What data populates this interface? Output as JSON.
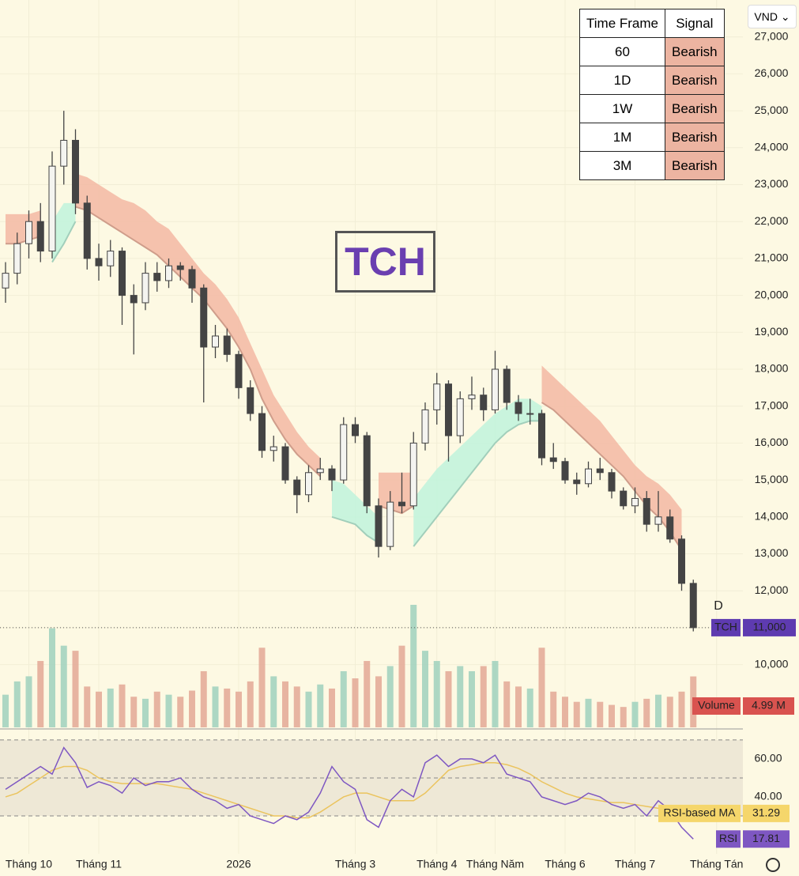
{
  "chart_data": {
    "type": "candlestick",
    "symbol": "TCH",
    "currency": "VND",
    "marker": "D",
    "ylim": [
      8300,
      28000
    ],
    "yticks": [
      {
        "value": 10000,
        "label": "10,000"
      },
      {
        "value": 11000,
        "label": "11,000"
      },
      {
        "value": 12000,
        "label": "12,000"
      },
      {
        "value": 13000,
        "label": "13,000"
      },
      {
        "value": 14000,
        "label": "14,000"
      },
      {
        "value": 15000,
        "label": "15,000"
      },
      {
        "value": 16000,
        "label": "16,000"
      },
      {
        "value": 17000,
        "label": "17,000"
      },
      {
        "value": 18000,
        "label": "18,000"
      },
      {
        "value": 19000,
        "label": "19,000"
      },
      {
        "value": 20000,
        "label": "20,000"
      },
      {
        "value": 21000,
        "label": "21,000"
      },
      {
        "value": 22000,
        "label": "22,000"
      },
      {
        "value": 23000,
        "label": "23,000"
      },
      {
        "value": 24000,
        "label": "24,000"
      },
      {
        "value": 25000,
        "label": "25,000"
      },
      {
        "value": 26000,
        "label": "26,000"
      },
      {
        "value": 27000,
        "label": "27,000"
      }
    ],
    "xticks": [
      {
        "value": 2,
        "label": "Tháng 10"
      },
      {
        "value": 8,
        "label": "Tháng 11"
      },
      {
        "value": 20,
        "label": "2026"
      },
      {
        "value": 30,
        "label": "Tháng 3"
      },
      {
        "value": 37,
        "label": "Tháng 4"
      },
      {
        "value": 42,
        "label": "Tháng Năm"
      },
      {
        "value": 48,
        "label": "Tháng 6"
      },
      {
        "value": 54,
        "label": "Tháng 7"
      },
      {
        "value": 61,
        "label": "Tháng Tán"
      }
    ],
    "ohlc": [
      [
        20200,
        20900,
        19800,
        20600
      ],
      [
        20600,
        21700,
        20300,
        21400
      ],
      [
        21400,
        22300,
        21000,
        22000
      ],
      [
        22000,
        22500,
        20900,
        21200
      ],
      [
        21200,
        23900,
        21000,
        23500
      ],
      [
        23500,
        25000,
        23000,
        24200
      ],
      [
        24200,
        24500,
        22200,
        22500
      ],
      [
        22500,
        22700,
        20700,
        21000
      ],
      [
        21000,
        21400,
        20400,
        20800
      ],
      [
        20800,
        21500,
        20500,
        21200
      ],
      [
        21200,
        21300,
        19200,
        20000
      ],
      [
        20000,
        20300,
        18400,
        19800
      ],
      [
        19800,
        20900,
        19600,
        20600
      ],
      [
        20600,
        20900,
        20100,
        20400
      ],
      [
        20400,
        21000,
        20200,
        20800
      ],
      [
        20800,
        20900,
        20400,
        20700
      ],
      [
        20700,
        20800,
        19800,
        20200
      ],
      [
        20200,
        20300,
        17100,
        18600
      ],
      [
        18600,
        19200,
        18300,
        18900
      ],
      [
        18900,
        19100,
        18200,
        18400
      ],
      [
        18400,
        18500,
        17200,
        17500
      ],
      [
        17500,
        17700,
        16600,
        16800
      ],
      [
        16800,
        17000,
        15600,
        15800
      ],
      [
        15800,
        16200,
        15500,
        15900
      ],
      [
        15900,
        16000,
        14900,
        15000
      ],
      [
        15000,
        15100,
        14100,
        14600
      ],
      [
        14600,
        15400,
        14400,
        15200
      ],
      [
        15200,
        15600,
        15000,
        15300
      ],
      [
        15300,
        15400,
        14700,
        15000
      ],
      [
        15000,
        16700,
        14900,
        16500
      ],
      [
        16500,
        16700,
        16000,
        16200
      ],
      [
        16200,
        16300,
        14100,
        14300
      ],
      [
        14300,
        14500,
        12900,
        13200
      ],
      [
        13200,
        14700,
        13100,
        14400
      ],
      [
        14400,
        15200,
        14100,
        14300
      ],
      [
        14300,
        16300,
        14200,
        16000
      ],
      [
        16000,
        17100,
        15800,
        16900
      ],
      [
        16900,
        17900,
        16500,
        17600
      ],
      [
        17600,
        17700,
        15500,
        16200
      ],
      [
        16200,
        17400,
        16000,
        17200
      ],
      [
        17200,
        17800,
        16900,
        17300
      ],
      [
        17300,
        17500,
        16600,
        16900
      ],
      [
        16900,
        18500,
        16800,
        18000
      ],
      [
        18000,
        18100,
        16900,
        17100
      ],
      [
        17100,
        17300,
        16600,
        16800
      ],
      [
        16800,
        17200,
        16500,
        16800
      ],
      [
        16800,
        16900,
        15400,
        15600
      ],
      [
        15600,
        16000,
        15300,
        15500
      ],
      [
        15500,
        15600,
        14900,
        15000
      ],
      [
        15000,
        15200,
        14600,
        14900
      ],
      [
        14900,
        15500,
        14800,
        15300
      ],
      [
        15300,
        15600,
        15000,
        15200
      ],
      [
        15200,
        15300,
        14500,
        14700
      ],
      [
        14700,
        14800,
        14200,
        14300
      ],
      [
        14300,
        14800,
        14100,
        14500
      ],
      [
        14500,
        14700,
        13600,
        13800
      ],
      [
        13800,
        14700,
        13600,
        14000
      ],
      [
        14000,
        14200,
        13300,
        13400
      ],
      [
        13400,
        13500,
        12000,
        12200
      ],
      [
        12200,
        12300,
        10900,
        11000
      ]
    ],
    "close_label": "11,000",
    "clouds": [
      {
        "color": "#f3b9a3",
        "start": 0,
        "upper": [
          22200,
          22200,
          22200,
          22300
        ],
        "lower": [
          21400,
          21400,
          21500,
          21600
        ]
      },
      {
        "color": "#bff3dc",
        "start": 4,
        "upper": [
          22000,
          22500,
          22500
        ],
        "lower": [
          20900,
          21400,
          22000
        ]
      },
      {
        "color": "#f3b9a3",
        "start": 6,
        "upper": [
          23300,
          23200,
          23000,
          22800,
          22600,
          22500,
          22300,
          22000,
          21800,
          21400,
          21000,
          20600,
          20300,
          19900,
          19400,
          18700,
          18000,
          17300,
          16800,
          16300,
          15900,
          15600
        ],
        "lower": [
          22400,
          22300,
          22100,
          21900,
          21700,
          21500,
          21300,
          21100,
          20800,
          20500,
          20200,
          19900,
          19500,
          19100,
          18600,
          18000,
          17200,
          16600,
          16100,
          15700,
          15400,
          15100
        ]
      },
      {
        "color": "#bff3dc",
        "start": 28,
        "upper": [
          15000,
          14900,
          14600,
          14300,
          14000
        ],
        "lower": [
          14000,
          13900,
          13800,
          13500,
          13300
        ]
      },
      {
        "color": "#f3b9a3",
        "start": 32,
        "upper": [
          15200,
          15200,
          15200,
          15200
        ],
        "lower": [
          14300,
          14200,
          14100,
          14300
        ]
      },
      {
        "color": "#bff3dc",
        "start": 35,
        "upper": [
          14500,
          14900,
          15300,
          15600,
          15900,
          16200,
          16500,
          16800,
          17000,
          17200,
          17200,
          17000
        ],
        "lower": [
          13200,
          13600,
          14000,
          14400,
          14800,
          15200,
          15600,
          16000,
          16300,
          16500,
          16600,
          16600
        ]
      },
      {
        "color": "#f3b9a3",
        "start": 46,
        "upper": [
          18100,
          17800,
          17500,
          17200,
          16900,
          16600,
          16200,
          15800,
          15400,
          15100,
          14900,
          14600,
          14200
        ],
        "lower": [
          17100,
          16900,
          16600,
          16300,
          16000,
          15700,
          15400,
          15100,
          14700,
          14300,
          14000,
          13600,
          13100
        ]
      }
    ],
    "volume_name": "Volume",
    "volume": [
      3.2,
      4.5,
      5.0,
      6.5,
      9.7,
      8.0,
      7.5,
      4.0,
      3.5,
      3.8,
      4.2,
      3.0,
      2.8,
      3.5,
      3.2,
      3.0,
      3.6,
      5.5,
      4.0,
      3.8,
      3.5,
      4.5,
      7.8,
      5.0,
      4.5,
      4.0,
      3.5,
      4.2,
      3.8,
      5.5,
      4.8,
      6.5,
      5.0,
      6.0,
      8.0,
      12.0,
      7.5,
      6.5,
      5.5,
      6.0,
      5.5,
      6.0,
      6.5,
      4.5,
      4.0,
      3.8,
      7.8,
      3.5,
      3.0,
      2.5,
      2.8,
      2.5,
      2.2,
      2.0,
      2.5,
      2.8,
      3.2,
      3.0,
      3.5,
      4.99
    ],
    "volume_label": "4.99 M",
    "rsi_name": "RSI",
    "rsi_ma_name": "RSI-based MA",
    "rsi_ylim": [
      10,
      73.3
    ],
    "rsi_yticks": [
      {
        "value": 60,
        "label": "60.00"
      },
      {
        "value": 40,
        "label": "40.00"
      }
    ],
    "rsi_levels": [
      70,
      50,
      30
    ],
    "rsi": [
      44,
      48,
      52,
      56,
      52,
      66,
      58,
      45,
      48,
      46,
      42,
      50,
      46,
      48,
      48,
      50,
      44,
      40,
      38,
      34,
      36,
      30,
      28,
      26,
      30,
      28,
      32,
      42,
      56,
      48,
      44,
      28,
      24,
      38,
      44,
      40,
      58,
      62,
      56,
      60,
      60,
      58,
      62,
      52,
      50,
      48,
      40,
      38,
      36,
      38,
      42,
      40,
      36,
      34,
      36,
      30,
      38,
      33,
      24,
      17.81
    ],
    "rsi_ma": [
      40,
      42,
      46,
      50,
      54,
      56,
      56,
      54,
      50,
      48,
      47,
      47,
      47,
      47,
      46,
      45,
      44,
      42,
      40,
      38,
      36,
      34,
      32,
      30,
      30,
      29,
      29,
      32,
      36,
      40,
      42,
      42,
      40,
      38,
      38,
      38,
      42,
      48,
      54,
      56,
      57,
      58,
      58,
      57,
      55,
      52,
      48,
      45,
      42,
      40,
      39,
      38,
      37,
      37,
      36,
      35,
      34,
      33,
      32,
      31.29
    ]
  },
  "signal_table": {
    "header": [
      "Time Frame",
      "Signal"
    ],
    "rows": [
      [
        "60",
        "Bearish"
      ],
      [
        "1D",
        "Bearish"
      ],
      [
        "1W",
        "Bearish"
      ],
      [
        "1M",
        "Bearish"
      ],
      [
        "3M",
        "Bearish"
      ]
    ]
  }
}
